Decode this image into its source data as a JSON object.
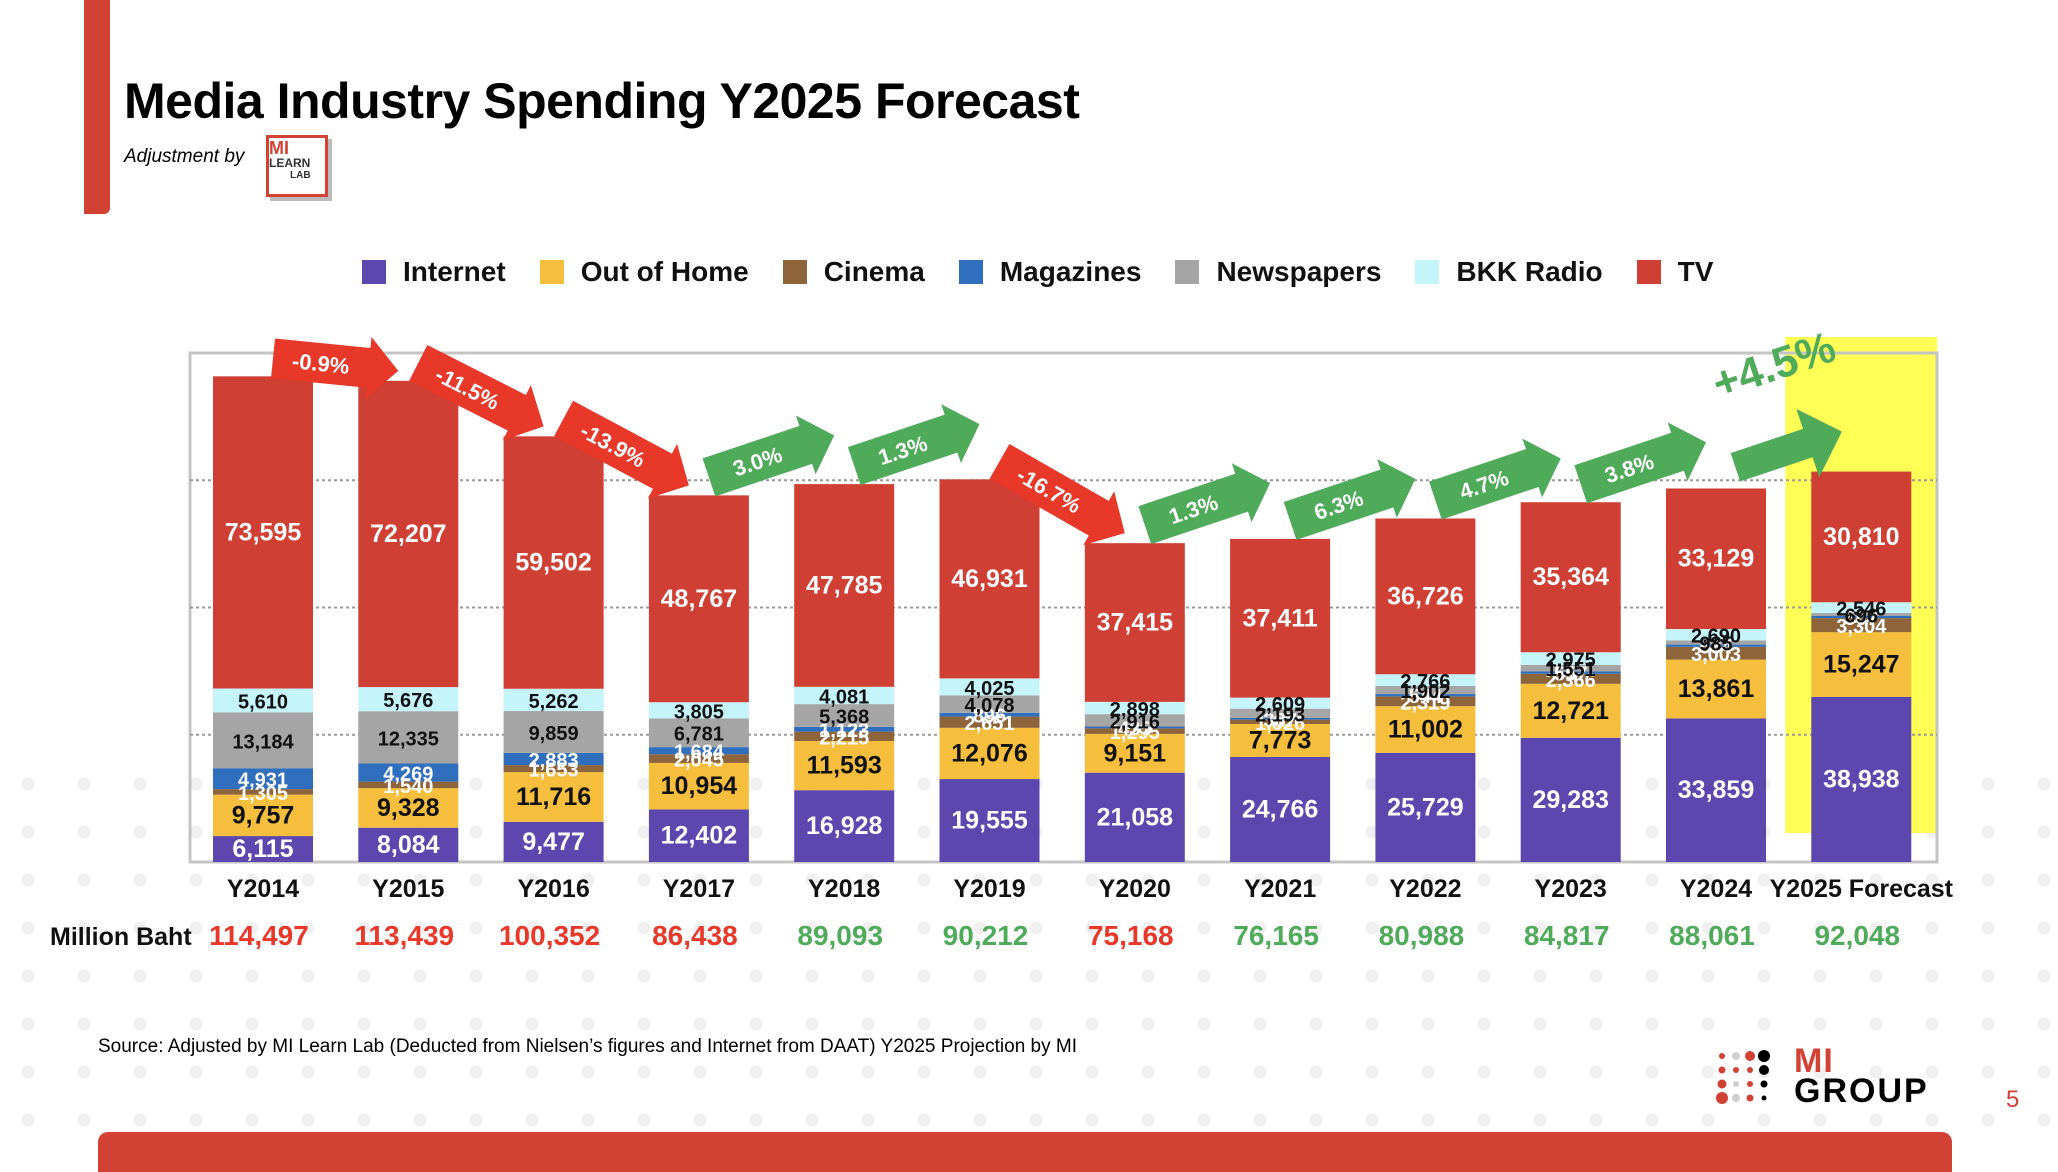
{
  "slide": {
    "title": "Media Industry Spending Y2025 Forecast",
    "adjustment_label": "Adjustment by",
    "learnlab_logo": {
      "line1": "MI",
      "line2": "LEARN",
      "line3": "LAB"
    },
    "source": "Source: Adjusted by MI Learn Lab (Deducted  from Nielsen’s figures and Internet from DAAT) Y2025 Projection by MI",
    "brand_logo": {
      "line1": "MI",
      "line2": "GROUP"
    },
    "page_number": "5"
  },
  "colors": {
    "Internet": "#5b47ad",
    "Out of Home": "#f5be3c",
    "Cinema": "#8e643b",
    "Magazines": "#2f6fbd",
    "Newspapers": "#a5a5a5",
    "BKK Radio": "#c5f4fb",
    "TV": "#cf3f33",
    "decline": "#e8382a",
    "growth": "#4fab5a",
    "highlight": "#ffff55",
    "accent": "#d24234"
  },
  "chart_data": {
    "type": "bar",
    "stacked": true,
    "title": "Media Industry Spending Y2025 Forecast",
    "xlabel": "",
    "ylabel": "Million Baht",
    "ylim": [
      0,
      120000
    ],
    "grid": "horizontal dotted lines at 30,000 / 60,000 / 90,000",
    "legend_position": "top",
    "categories": [
      "Y2014",
      "Y2015",
      "Y2016",
      "Y2017",
      "Y2018",
      "Y2019",
      "Y2020",
      "Y2021",
      "Y2022",
      "Y2023",
      "Y2024",
      "Y2025 Forecast"
    ],
    "series": [
      {
        "name": "Internet",
        "values": [
          6115,
          8084,
          9477,
          12402,
          16928,
          19555,
          21058,
          24766,
          25729,
          29283,
          33859,
          38938
        ]
      },
      {
        "name": "Out of Home",
        "values": [
          9757,
          9328,
          11716,
          10954,
          11593,
          12076,
          9151,
          7773,
          11002,
          12721,
          13861,
          15247
        ]
      },
      {
        "name": "Cinema",
        "values": [
          1305,
          1540,
          1653,
          2045,
          2215,
          2651,
          1295,
          1026,
          2319,
          2366,
          3003,
          3304
        ]
      },
      {
        "name": "Magazines",
        "values": [
          4931,
          4269,
          2883,
          1684,
          1123,
          896,
          435,
          387,
          544,
          557,
          534,
          507
        ]
      },
      {
        "name": "Newspapers",
        "values": [
          13184,
          12335,
          9859,
          6781,
          5368,
          4078,
          2916,
          2193,
          1902,
          1551,
          985,
          696
        ]
      },
      {
        "name": "BKK Radio",
        "values": [
          5610,
          5676,
          5262,
          3805,
          4081,
          4025,
          2898,
          2609,
          2766,
          2975,
          2690,
          2546
        ]
      },
      {
        "name": "TV",
        "values": [
          73595,
          72207,
          59502,
          48767,
          47785,
          46931,
          37415,
          37411,
          36726,
          35364,
          33129,
          30810
        ]
      }
    ],
    "totals_label": "Million Baht",
    "totals": [
      "114,497",
      "113,439",
      "100,352",
      "86,438",
      "89,093",
      "90,212",
      "75,168",
      "76,165",
      "80,988",
      "84,817",
      "88,061",
      "92,048"
    ],
    "totals_trend": [
      "down",
      "down",
      "down",
      "down",
      "up",
      "up",
      "down",
      "up",
      "up",
      "up",
      "up",
      "up"
    ],
    "growth_arrows": [
      {
        "from": "Y2014",
        "to": "Y2015",
        "label": "-0.9%",
        "trend": "down"
      },
      {
        "from": "Y2015",
        "to": "Y2016",
        "label": "-11.5%",
        "trend": "down"
      },
      {
        "from": "Y2016",
        "to": "Y2017",
        "label": "-13.9%",
        "trend": "down"
      },
      {
        "from": "Y2017",
        "to": "Y2018",
        "label": "3.0%",
        "trend": "up"
      },
      {
        "from": "Y2018",
        "to": "Y2019",
        "label": "1.3%",
        "trend": "up"
      },
      {
        "from": "Y2019",
        "to": "Y2020",
        "label": "-16.7%",
        "trend": "down"
      },
      {
        "from": "Y2020",
        "to": "Y2021",
        "label": "1.3%",
        "trend": "up"
      },
      {
        "from": "Y2021",
        "to": "Y2022",
        "label": "6.3%",
        "trend": "up"
      },
      {
        "from": "Y2022",
        "to": "Y2023",
        "label": "4.7%",
        "trend": "up"
      },
      {
        "from": "Y2023",
        "to": "Y2024",
        "label": "3.8%",
        "trend": "up"
      },
      {
        "from": "Y2024",
        "to": "Y2025 Forecast",
        "label": "+4.5%",
        "trend": "up",
        "big": true
      }
    ],
    "highlighted_category": "Y2025 Forecast"
  }
}
